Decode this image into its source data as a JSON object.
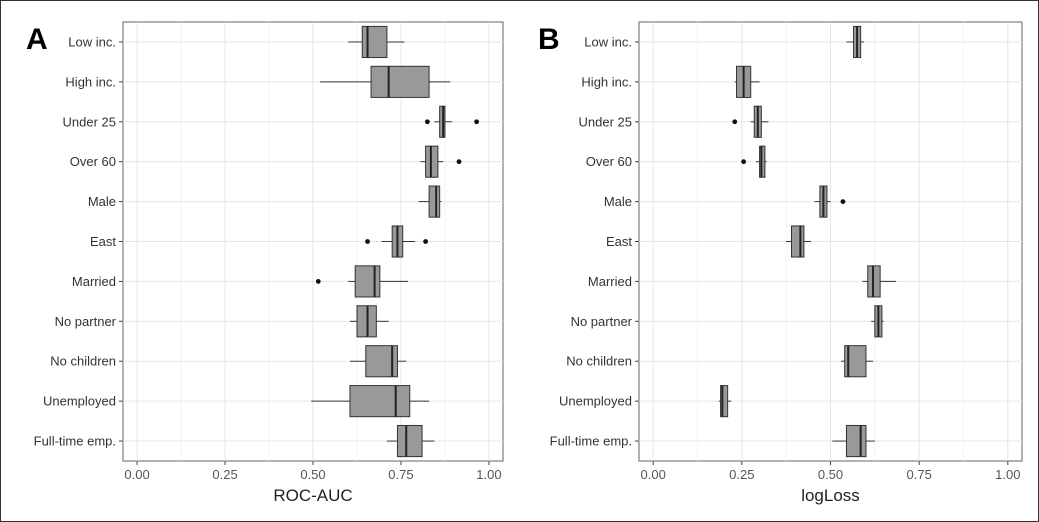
{
  "chart_data": [
    {
      "type": "boxplot",
      "panel_label": "A",
      "xlabel": "ROC-AUC",
      "xlim": [
        -0.04,
        1.04
      ],
      "xticks": [
        "0.00",
        "0.25",
        "0.50",
        "0.75",
        "1.00"
      ],
      "xtick_values": [
        0,
        0.25,
        0.5,
        0.75,
        1.0
      ],
      "grid": true,
      "categories": [
        "Low inc.",
        "High inc.",
        "Under 25",
        "Over 60",
        "Male",
        "East",
        "Married",
        "No partner",
        "No children",
        "Unemployed",
        "Full-time emp."
      ],
      "boxes": [
        {
          "min": 0.6,
          "q1": 0.64,
          "median": 0.655,
          "q3": 0.71,
          "max": 0.76,
          "outliers": []
        },
        {
          "min": 0.52,
          "q1": 0.665,
          "median": 0.715,
          "q3": 0.83,
          "max": 0.89,
          "outliers": []
        },
        {
          "min": 0.845,
          "q1": 0.86,
          "median": 0.87,
          "q3": 0.875,
          "max": 0.895,
          "outliers": [
            0.825,
            0.965
          ]
        },
        {
          "min": 0.805,
          "q1": 0.82,
          "median": 0.835,
          "q3": 0.855,
          "max": 0.87,
          "outliers": [
            0.915
          ]
        },
        {
          "min": 0.8,
          "q1": 0.83,
          "median": 0.85,
          "q3": 0.86,
          "max": 0.865,
          "outliers": []
        },
        {
          "min": 0.695,
          "q1": 0.725,
          "median": 0.74,
          "q3": 0.755,
          "max": 0.79,
          "outliers": [
            0.655,
            0.82
          ]
        },
        {
          "min": 0.6,
          "q1": 0.62,
          "median": 0.675,
          "q3": 0.69,
          "max": 0.77,
          "outliers": [
            0.515
          ]
        },
        {
          "min": 0.605,
          "q1": 0.625,
          "median": 0.655,
          "q3": 0.68,
          "max": 0.715,
          "outliers": []
        },
        {
          "min": 0.605,
          "q1": 0.65,
          "median": 0.725,
          "q3": 0.74,
          "max": 0.765,
          "outliers": []
        },
        {
          "min": 0.495,
          "q1": 0.605,
          "median": 0.735,
          "q3": 0.775,
          "max": 0.83,
          "outliers": []
        },
        {
          "min": 0.71,
          "q1": 0.74,
          "median": 0.765,
          "q3": 0.81,
          "max": 0.845,
          "outliers": []
        }
      ],
      "box_color": "#999999"
    },
    {
      "type": "boxplot",
      "panel_label": "B",
      "xlabel": "logLoss",
      "xlim": [
        -0.04,
        1.04
      ],
      "xticks": [
        "0.00",
        "0.25",
        "0.50",
        "0.75",
        "1.00"
      ],
      "xtick_values": [
        0,
        0.25,
        0.5,
        0.75,
        1.0
      ],
      "grid": true,
      "categories": [
        "Low inc.",
        "High inc.",
        "Under 25",
        "Over 60",
        "Male",
        "East",
        "Married",
        "No partner",
        "No children",
        "Unemployed",
        "Full-time emp."
      ],
      "boxes": [
        {
          "min": 0.545,
          "q1": 0.565,
          "median": 0.575,
          "q3": 0.585,
          "max": 0.595,
          "outliers": []
        },
        {
          "min": 0.23,
          "q1": 0.235,
          "median": 0.255,
          "q3": 0.275,
          "max": 0.3,
          "outliers": []
        },
        {
          "min": 0.275,
          "q1": 0.285,
          "median": 0.295,
          "q3": 0.305,
          "max": 0.325,
          "outliers": [
            0.23
          ]
        },
        {
          "min": 0.29,
          "q1": 0.3,
          "median": 0.305,
          "q3": 0.315,
          "max": 0.32,
          "outliers": [
            0.255
          ]
        },
        {
          "min": 0.455,
          "q1": 0.47,
          "median": 0.48,
          "q3": 0.49,
          "max": 0.5,
          "outliers": [
            0.535
          ]
        },
        {
          "min": 0.375,
          "q1": 0.39,
          "median": 0.415,
          "q3": 0.425,
          "max": 0.445,
          "outliers": []
        },
        {
          "min": 0.59,
          "q1": 0.605,
          "median": 0.62,
          "q3": 0.64,
          "max": 0.685,
          "outliers": []
        },
        {
          "min": 0.615,
          "q1": 0.625,
          "median": 0.635,
          "q3": 0.645,
          "max": 0.65,
          "outliers": []
        },
        {
          "min": 0.53,
          "q1": 0.54,
          "median": 0.55,
          "q3": 0.6,
          "max": 0.62,
          "outliers": []
        },
        {
          "min": 0.185,
          "q1": 0.19,
          "median": 0.195,
          "q3": 0.21,
          "max": 0.22,
          "outliers": []
        },
        {
          "min": 0.505,
          "q1": 0.545,
          "median": 0.585,
          "q3": 0.6,
          "max": 0.625,
          "outliers": []
        }
      ],
      "box_color": "#999999"
    }
  ]
}
